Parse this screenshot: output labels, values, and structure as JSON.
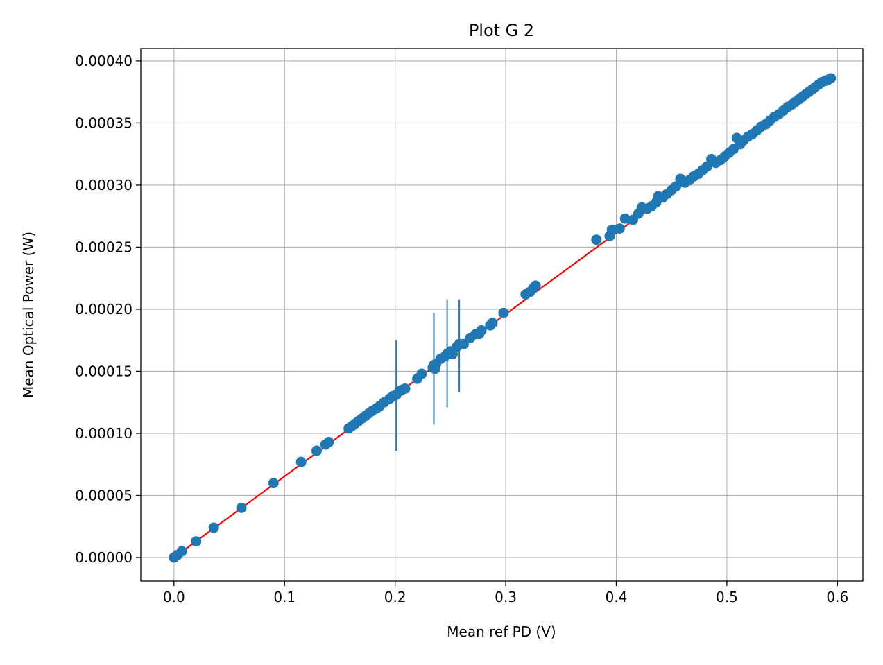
{
  "chart_data": {
    "type": "scatter",
    "title": "Plot G 2",
    "xlabel": "Mean ref PD (V)",
    "ylabel": "Mean Optical Power (W)",
    "xlim": [
      -0.03,
      0.623
    ],
    "ylim": [
      -1.9e-05,
      0.00041
    ],
    "grid": true,
    "x_ticks": [
      0.0,
      0.1,
      0.2,
      0.3,
      0.4,
      0.5,
      0.6
    ],
    "x_tick_labels": [
      "0.0",
      "0.1",
      "0.2",
      "0.3",
      "0.4",
      "0.5",
      "0.6"
    ],
    "y_ticks": [
      0.0,
      5e-05,
      0.0001,
      0.00015,
      0.0002,
      0.00025,
      0.0003,
      0.00035,
      0.0004
    ],
    "y_tick_labels": [
      "0.00000",
      "0.00005",
      "0.00010",
      "0.00015",
      "0.00020",
      "0.00025",
      "0.00030",
      "0.00035",
      "0.00040"
    ],
    "colors": {
      "points": "#1f77b4",
      "fit": "#ff0000",
      "grid": "#b0b0b0"
    },
    "fit_line": {
      "x": [
        0.0,
        0.595
      ],
      "y": [
        0.0,
        0.000389
      ]
    },
    "series": [
      {
        "x": [
          0.0,
          0.003,
          0.007,
          0.02,
          0.036,
          0.061,
          0.09,
          0.115,
          0.129,
          0.137,
          0.14,
          0.158,
          0.161,
          0.164,
          0.167,
          0.17,
          0.173,
          0.176,
          0.179,
          0.183,
          0.186,
          0.19,
          0.195,
          0.198,
          0.201,
          0.204,
          0.206,
          0.209,
          0.22,
          0.224,
          0.234,
          0.235,
          0.236,
          0.237,
          0.241,
          0.245,
          0.247,
          0.25,
          0.252,
          0.256,
          0.258,
          0.262,
          0.268,
          0.273,
          0.276,
          0.278,
          0.286,
          0.288,
          0.298,
          0.318,
          0.322,
          0.325,
          0.327,
          0.382,
          0.394,
          0.396,
          0.403,
          0.408,
          0.415,
          0.42,
          0.423,
          0.428,
          0.432,
          0.436,
          0.438,
          0.442,
          0.446,
          0.45,
          0.454,
          0.458,
          0.462,
          0.466,
          0.47,
          0.474,
          0.478,
          0.482,
          0.486,
          0.49,
          0.494,
          0.498,
          0.502,
          0.506,
          0.509,
          0.512,
          0.515,
          0.519,
          0.523,
          0.527,
          0.531,
          0.535,
          0.539,
          0.543,
          0.547,
          0.551,
          0.555,
          0.559,
          0.562,
          0.565,
          0.568,
          0.571,
          0.574,
          0.577,
          0.58,
          0.583,
          0.586,
          0.589,
          0.592,
          0.594
        ],
        "y": [
          0.0,
          2e-06,
          5e-06,
          1.3e-05,
          2.4e-05,
          4e-05,
          6e-05,
          7.7e-05,
          8.6e-05,
          9.1e-05,
          9.3e-05,
          0.000104,
          0.000106,
          0.000108,
          0.00011,
          0.000112,
          0.000114,
          0.000116,
          0.000118,
          0.00012,
          0.000122,
          0.000125,
          0.000128,
          0.00013,
          0.000131,
          0.000134,
          0.000135,
          0.000136,
          0.000144,
          0.000148,
          0.000153,
          0.000155,
          0.000152,
          0.000156,
          0.00016,
          0.000162,
          0.000164,
          0.000166,
          0.000164,
          0.00017,
          0.000172,
          0.000172,
          0.000177,
          0.00018,
          0.00018,
          0.000183,
          0.000187,
          0.000189,
          0.000197,
          0.000212,
          0.000214,
          0.000217,
          0.000219,
          0.000256,
          0.000259,
          0.000264,
          0.000265,
          0.000273,
          0.000272,
          0.000277,
          0.000282,
          0.000281,
          0.000283,
          0.000286,
          0.000291,
          0.00029,
          0.000293,
          0.000296,
          0.000299,
          0.000305,
          0.000302,
          0.000304,
          0.000307,
          0.000309,
          0.000312,
          0.000315,
          0.000321,
          0.000318,
          0.00032,
          0.000323,
          0.000326,
          0.000329,
          0.000338,
          0.000333,
          0.000336,
          0.000339,
          0.000341,
          0.000344,
          0.000347,
          0.000349,
          0.000352,
          0.000355,
          0.000357,
          0.00036,
          0.000363,
          0.000365,
          0.000367,
          0.000369,
          0.000371,
          0.000373,
          0.000375,
          0.000377,
          0.000379,
          0.000381,
          0.000383,
          0.000384,
          0.000385,
          0.000386
        ]
      }
    ],
    "error_bars": [
      {
        "x": 0.201,
        "y_low": 8.6e-05,
        "y_high": 0.000175
      },
      {
        "x": 0.235,
        "y_low": 0.000107,
        "y_high": 0.000197
      },
      {
        "x": 0.247,
        "y_low": 0.000121,
        "y_high": 0.000208
      },
      {
        "x": 0.258,
        "y_low": 0.000133,
        "y_high": 0.000208
      }
    ]
  }
}
